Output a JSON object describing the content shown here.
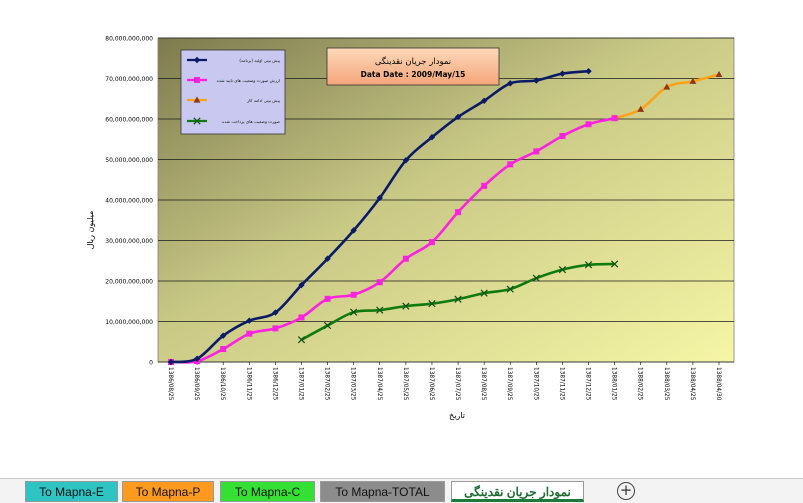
{
  "tabs": [
    {
      "label": "To Mapna-E",
      "bg": "#2ec4c4"
    },
    {
      "label": "To Mapna-P",
      "bg": "#ff9a1f"
    },
    {
      "label": "To Mapna-C",
      "bg": "#33e033"
    },
    {
      "label": "To Mapna-TOTAL",
      "bg": "#8c8c8c"
    },
    {
      "label": "نمودار جریان نقدینگی",
      "bg": "#ffffff",
      "active": true
    }
  ],
  "add_sheet_label": "+",
  "chart_data": {
    "type": "line",
    "title": "نمودار جریان نقدینگی",
    "subtitle": "Data Date : 2009/May/15",
    "xlabel": "تاریخ",
    "ylabel": "میلیون ریال",
    "ylim": [
      0,
      80000000000
    ],
    "yticks": [
      0,
      10000000000,
      20000000000,
      30000000000,
      40000000000,
      50000000000,
      60000000000,
      70000000000,
      80000000000
    ],
    "ytick_labels": [
      "0",
      "10,000,000,000",
      "20,000,000,000",
      "30,000,000,000",
      "40,000,000,000",
      "50,000,000,000",
      "60,000,000,000",
      "70,000,000,000",
      "80,000,000,000"
    ],
    "categories": [
      "1386/08/25",
      "1386/09/25",
      "1386/10/25",
      "1386/11/25",
      "1386/12/25",
      "1387/01/25",
      "1387/02/25",
      "1387/03/25",
      "1387/04/25",
      "1387/05/25",
      "1387/06/25",
      "1387/07/25",
      "1387/08/25",
      "1387/09/25",
      "1387/10/25",
      "1387/11/25",
      "1387/12/25",
      "1388/01/25",
      "1388/02/25",
      "1388/03/25",
      "1388/04/25",
      "1388/04/30"
    ],
    "grid": true,
    "legend_position": "top-left",
    "series": [
      {
        "name": "پیش بینی اولیه (برنامه)",
        "color": "#0b1a66",
        "marker": "diamond",
        "values": [
          0,
          800000000,
          6500000000,
          10200000000,
          12200000000,
          19000000000,
          25500000000,
          32500000000,
          40500000000,
          49800000000,
          55500000000,
          60500000000,
          64500000000,
          68800000000,
          69500000000,
          71200000000,
          71800000000,
          null,
          null,
          null,
          null,
          null
        ]
      },
      {
        "name": "ارزش صورت وضعیت های تایید شده",
        "color": "#ff22e0",
        "marker": "square",
        "values": [
          0,
          200000000,
          3200000000,
          7000000000,
          8300000000,
          11000000000,
          15600000000,
          16600000000,
          19700000000,
          25500000000,
          29600000000,
          37000000000,
          43500000000,
          48800000000,
          52000000000,
          55800000000,
          58700000000,
          60200000000,
          null,
          null,
          null,
          null
        ]
      },
      {
        "name": "پیش بینی ادامه کار",
        "color": "#ffa21a",
        "marker": "triangle",
        "values": [
          null,
          null,
          null,
          null,
          null,
          null,
          null,
          null,
          null,
          null,
          null,
          null,
          null,
          null,
          null,
          null,
          null,
          60200000000,
          62400000000,
          67900000000,
          69300000000,
          71000000000
        ]
      },
      {
        "name": "صورت وضعیت های پرداخت شده",
        "color": "#0f7a0f",
        "marker": "x",
        "values": [
          null,
          null,
          null,
          null,
          null,
          5500000000,
          9000000000,
          12300000000,
          12800000000,
          13800000000,
          14400000000,
          15500000000,
          17000000000,
          18000000000,
          20700000000,
          22800000000,
          24000000000,
          24200000000,
          null,
          null,
          null,
          null
        ]
      }
    ]
  }
}
